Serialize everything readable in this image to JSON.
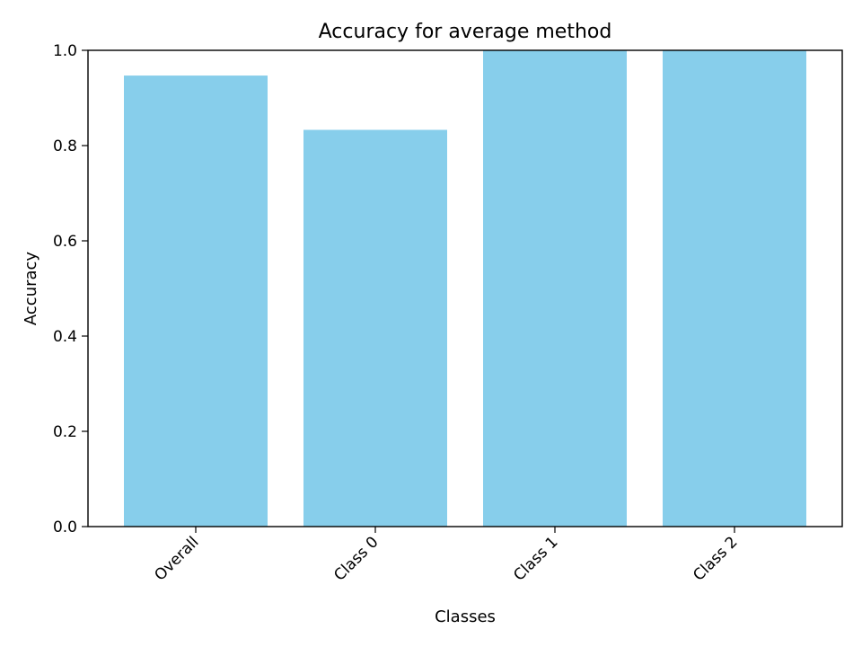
{
  "chart_data": {
    "type": "bar",
    "title": "Accuracy for average method",
    "xlabel": "Classes",
    "ylabel": "Accuracy",
    "categories": [
      "Overall",
      "Class 0",
      "Class 1",
      "Class 2"
    ],
    "values": [
      0.947,
      0.833,
      1.0,
      1.0
    ],
    "ylim": [
      0,
      1.0
    ],
    "yticks": [
      0.0,
      0.2,
      0.4,
      0.6,
      0.8,
      1.0
    ],
    "ytick_labels": [
      "0.0",
      "0.2",
      "0.4",
      "0.6",
      "0.8",
      "1.0"
    ],
    "bar_color": "#87ceeb",
    "grid": false,
    "legend": "none"
  }
}
